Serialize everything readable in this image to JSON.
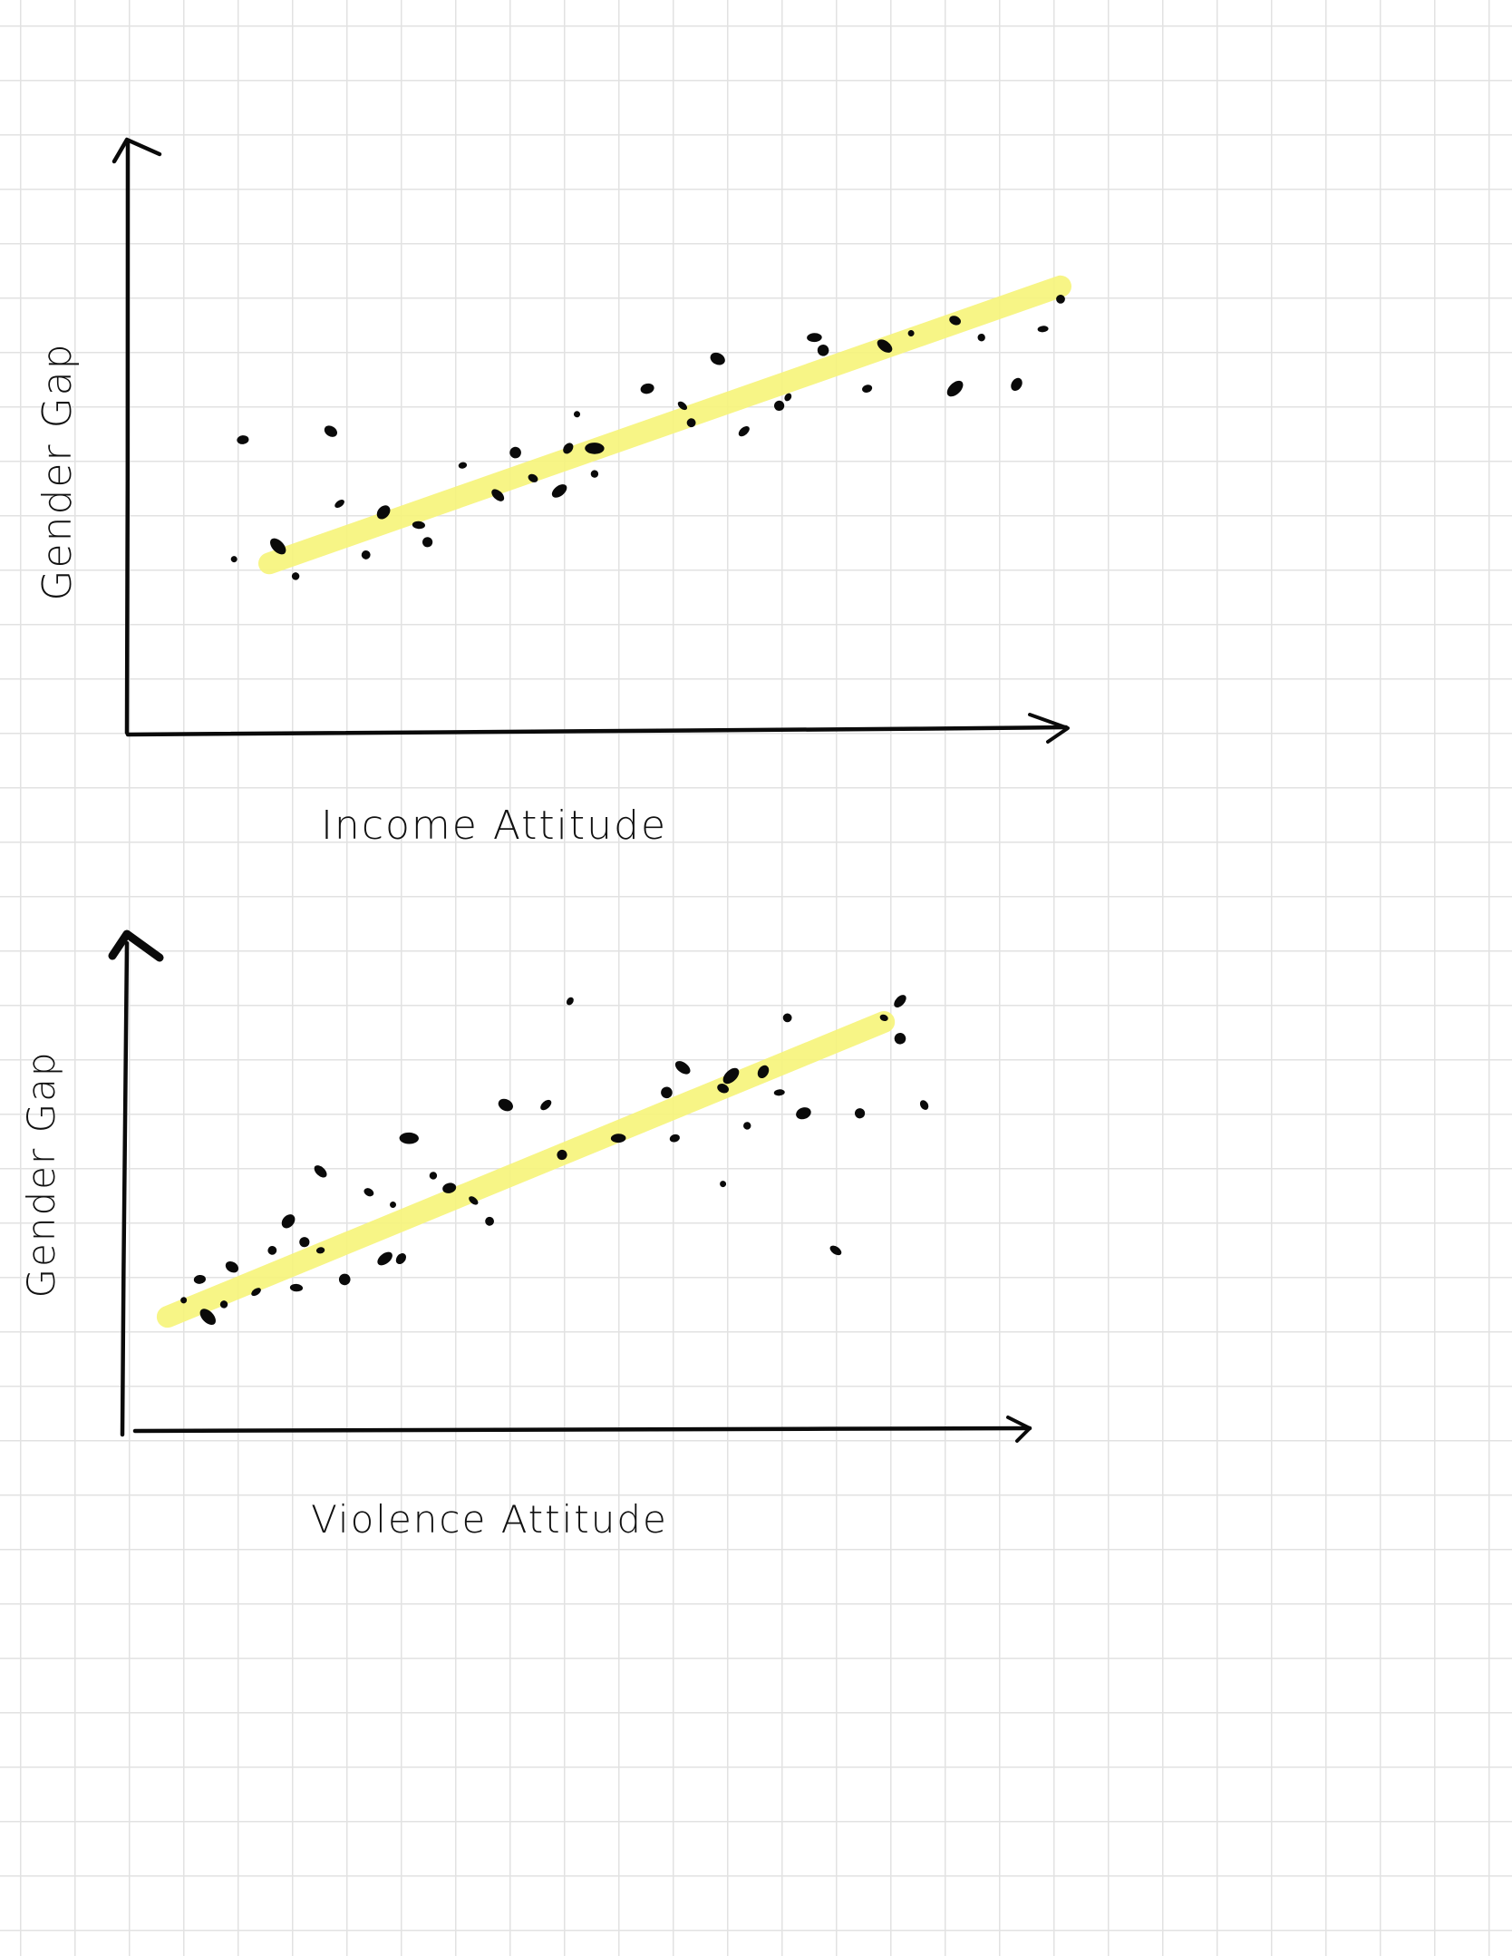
{
  "colors": {
    "ink": "#0a0a0a",
    "highlighter": "#f7f47a",
    "grid": "#e2e2e2",
    "paper": "#ffffff"
  },
  "chart_data": [
    {
      "type": "scatter",
      "title": "",
      "xlabel": "Income Attitude",
      "ylabel": "Gender Gap",
      "xlim": [
        0,
        100
      ],
      "ylim": [
        0,
        100
      ],
      "grid": true,
      "trendline": {
        "x": [
          10,
          100
        ],
        "y": [
          21,
          86
        ],
        "style": "highlighter"
      },
      "points": [
        [
          6,
          22
        ],
        [
          7,
          50
        ],
        [
          11,
          25
        ],
        [
          13,
          18
        ],
        [
          17,
          52
        ],
        [
          18,
          35
        ],
        [
          21,
          23
        ],
        [
          23,
          33
        ],
        [
          27,
          30
        ],
        [
          28,
          26
        ],
        [
          32,
          44
        ],
        [
          36,
          37
        ],
        [
          38,
          47
        ],
        [
          40,
          41
        ],
        [
          43,
          38
        ],
        [
          45,
          56
        ],
        [
          44,
          48
        ],
        [
          47,
          48
        ],
        [
          47,
          42
        ],
        [
          53,
          62
        ],
        [
          57,
          58
        ],
        [
          58,
          54
        ],
        [
          61,
          69
        ],
        [
          64,
          52
        ],
        [
          68,
          58
        ],
        [
          69,
          60
        ],
        [
          72,
          74
        ],
        [
          73,
          71
        ],
        [
          78,
          62
        ],
        [
          80,
          72
        ],
        [
          83,
          75
        ],
        [
          88,
          78
        ],
        [
          88,
          62
        ],
        [
          91,
          74
        ],
        [
          95,
          63
        ],
        [
          98,
          76
        ],
        [
          100,
          83
        ]
      ]
    },
    {
      "type": "scatter",
      "title": "",
      "xlabel": "Violence Attitude",
      "ylabel": "Gender Gap",
      "xlim": [
        0,
        100
      ],
      "ylim": [
        0,
        100
      ],
      "grid": true,
      "trendline": {
        "x": [
          1,
          90
        ],
        "y": [
          17,
          88
        ],
        "style": "highlighter"
      },
      "points": [
        [
          3,
          21
        ],
        [
          5,
          26
        ],
        [
          6,
          17
        ],
        [
          8,
          20
        ],
        [
          9,
          29
        ],
        [
          12,
          23
        ],
        [
          14,
          33
        ],
        [
          16,
          40
        ],
        [
          17,
          24
        ],
        [
          18,
          35
        ],
        [
          20,
          33
        ],
        [
          20,
          52
        ],
        [
          23,
          26
        ],
        [
          26,
          47
        ],
        [
          28,
          31
        ],
        [
          29,
          44
        ],
        [
          30,
          31
        ],
        [
          31,
          60
        ],
        [
          34,
          51
        ],
        [
          36,
          48
        ],
        [
          39,
          45
        ],
        [
          41,
          40
        ],
        [
          43,
          68
        ],
        [
          48,
          68
        ],
        [
          50,
          56
        ],
        [
          51,
          93
        ],
        [
          57,
          60
        ],
        [
          63,
          71
        ],
        [
          64,
          60
        ],
        [
          65,
          77
        ],
        [
          70,
          49
        ],
        [
          70,
          72
        ],
        [
          71,
          75
        ],
        [
          73,
          63
        ],
        [
          75,
          76
        ],
        [
          77,
          71
        ],
        [
          78,
          89
        ],
        [
          80,
          66
        ],
        [
          84,
          33
        ],
        [
          87,
          66
        ],
        [
          90,
          89
        ],
        [
          92,
          93
        ],
        [
          92,
          84
        ],
        [
          95,
          68
        ]
      ]
    }
  ]
}
